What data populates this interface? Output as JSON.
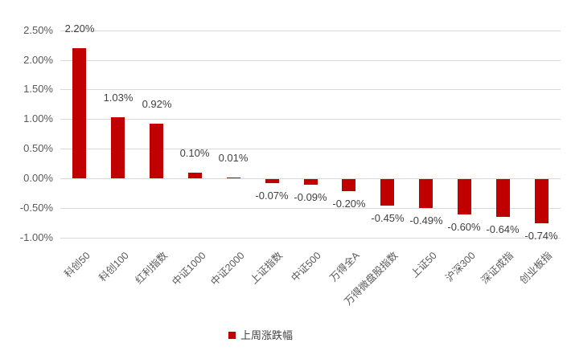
{
  "chart_data": {
    "type": "bar",
    "title": "",
    "xlabel": "",
    "ylabel": "",
    "categories": [
      "科创50",
      "科创100",
      "红利指数",
      "中证1000",
      "中证2000",
      "上证指数",
      "中证500",
      "万得全A",
      "万得微盘股指数",
      "上证50",
      "沪深300",
      "深证成指",
      "创业板指"
    ],
    "series": [
      {
        "name": "上周涨跌幅",
        "values": [
          2.2,
          1.03,
          0.92,
          0.1,
          0.01,
          -0.07,
          -0.09,
          -0.2,
          -0.45,
          -0.49,
          -0.6,
          -0.64,
          -0.74
        ],
        "value_labels": [
          "2.20%",
          "1.03%",
          "0.92%",
          "0.10%",
          "0.01%",
          "-0.07%",
          "-0.09%",
          "-0.20%",
          "-0.45%",
          "-0.49%",
          "-0.60%",
          "-0.64%",
          "-0.74%"
        ]
      }
    ],
    "y_ticks": [
      {
        "label": "2.50%",
        "value": 2.5
      },
      {
        "label": "2.00%",
        "value": 2.0
      },
      {
        "label": "1.50%",
        "value": 1.5
      },
      {
        "label": "1.00%",
        "value": 1.0
      },
      {
        "label": "0.50%",
        "value": 0.5
      },
      {
        "label": "0.00%",
        "value": 0.0
      },
      {
        "label": "-0.50%",
        "value": -0.5
      },
      {
        "label": "-1.00%",
        "value": -1.0
      }
    ],
    "ylim": [
      -1.0,
      2.5
    ],
    "grid": true,
    "legend_position": "bottom",
    "colors": {
      "bar": "#c00000",
      "gridline": "#d9d9d9",
      "axis_tick_text": "#595959",
      "category_text": "#595959",
      "data_label_text": "#404040",
      "legend_text": "#404040",
      "background": "#ffffff"
    }
  },
  "legend": {
    "label": "上周涨跌幅",
    "swatch_color": "#c00000"
  }
}
